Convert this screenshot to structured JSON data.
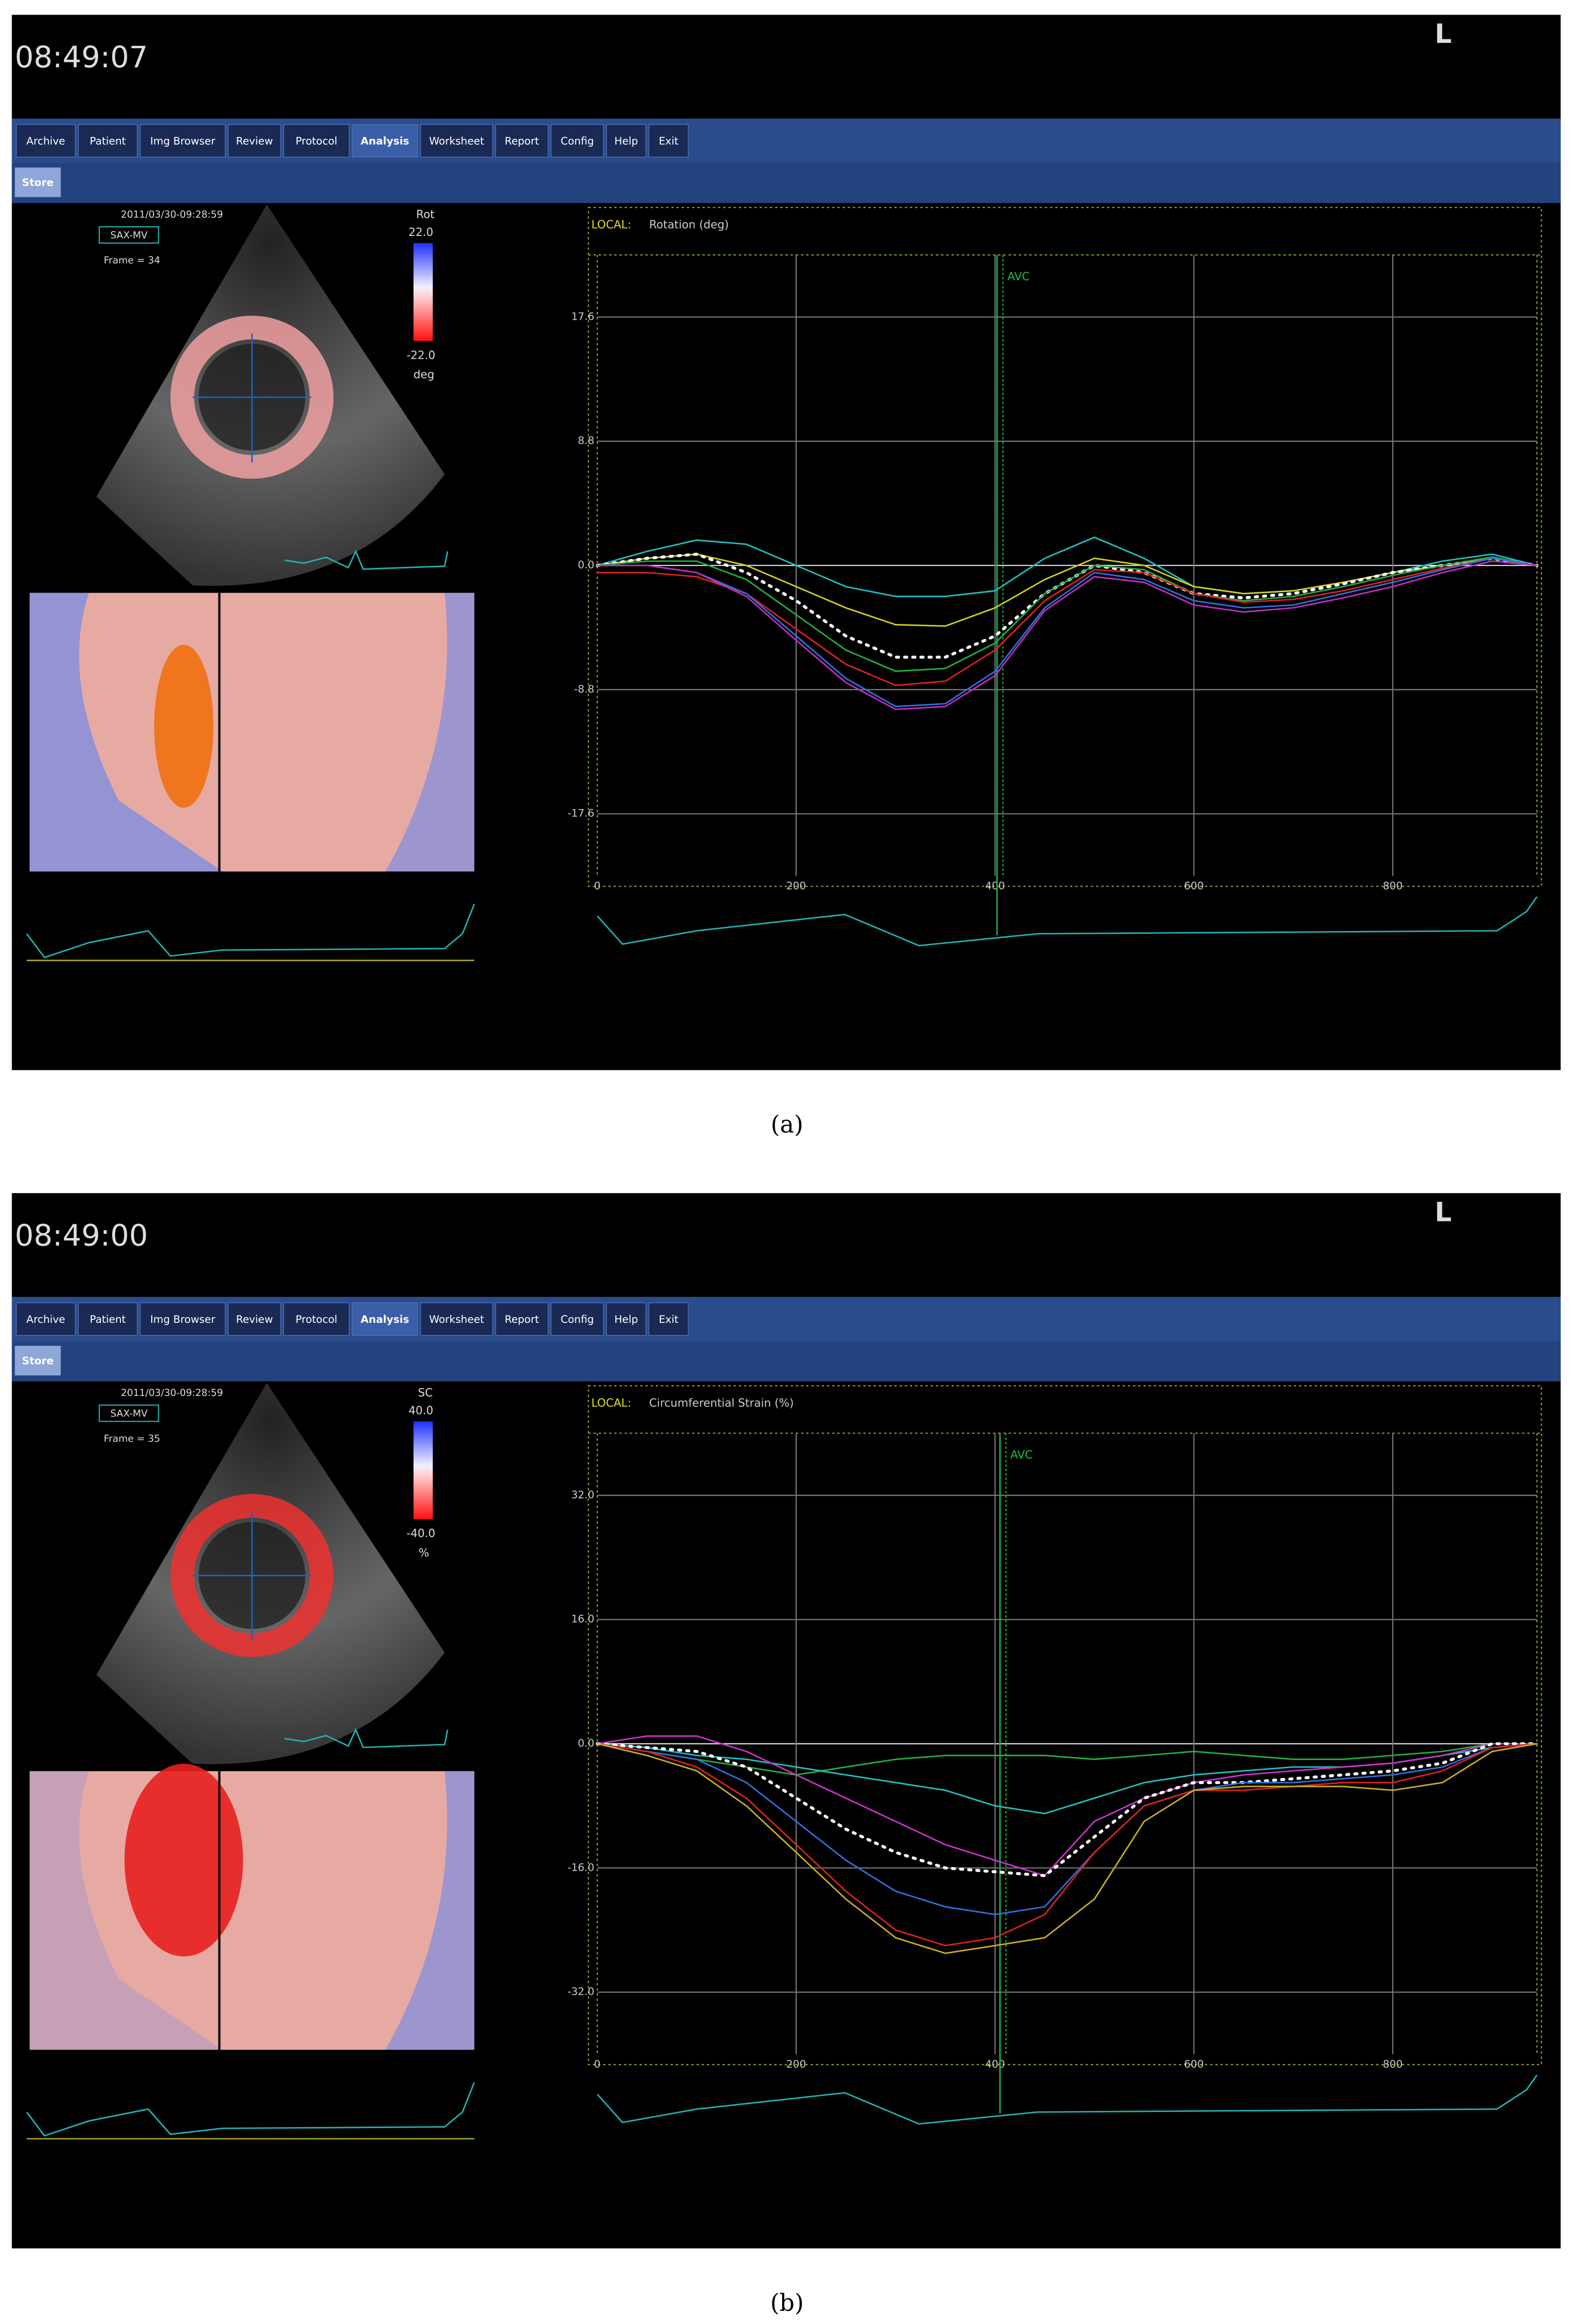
{
  "panels": [
    {
      "caption": "(a)",
      "time": "08:49:07",
      "corner": "L",
      "tabs": [
        "Archive",
        "Patient",
        "Img Browser",
        "Review",
        "Protocol",
        "Analysis",
        "Worksheet",
        "Report",
        "Config",
        "Help",
        "Exit"
      ],
      "active_tab": 5,
      "store": "Store",
      "date": "2011/03/30-09:28:59",
      "view": "SAX-MV",
      "frame": "Frame = 34",
      "colorbar": {
        "name": "Rot",
        "max": "22.0",
        "min": "-22.0",
        "unit": "deg",
        "ring_color": "#f0a0a0",
        "blob_color": "#f07010"
      },
      "chart": {
        "local": "LOCAL:",
        "title": "Rotation (deg)",
        "marker": "AVC",
        "marker_x": 402,
        "xlim": [
          0,
          945
        ],
        "ylim": [
          -22,
          22
        ],
        "xticks": [
          0,
          200,
          400,
          600,
          800
        ],
        "yticks": [
          17.6,
          8.8,
          {
            "value": 0,
            "label": "0.0"
          },
          -8.8,
          -17.6
        ],
        "x": [
          0,
          50,
          100,
          150,
          200,
          250,
          300,
          350,
          400,
          450,
          500,
          550,
          600,
          650,
          700,
          750,
          800,
          850,
          900,
          945
        ],
        "series": [
          {
            "color": "#20c0c0",
            "values": [
              0,
              1,
              1.8,
              1.5,
              0,
              -1.5,
              -2.2,
              -2.2,
              -1.8,
              0.5,
              2,
              0.5,
              -1.5,
              -2,
              -1.8,
              -1.2,
              -0.5,
              0.3,
              0.8,
              0
            ]
          },
          {
            "color": "#d0d020",
            "values": [
              0,
              0.5,
              0.8,
              0,
              -1.5,
              -3,
              -4.2,
              -4.3,
              -3,
              -1,
              0.5,
              0,
              -1.5,
              -2,
              -1.8,
              -1.2,
              -0.5,
              0,
              0.5,
              0
            ]
          },
          {
            "color": "#ffffff",
            "style": "dotted",
            "values": [
              0,
              0.5,
              0.8,
              -0.5,
              -2.5,
              -5,
              -6.5,
              -6.5,
              -5,
              -2,
              0,
              -0.5,
              -2,
              -2.3,
              -2,
              -1.3,
              -0.5,
              0,
              0.5,
              0
            ]
          },
          {
            "color": "#20b040",
            "values": [
              0,
              0.3,
              0.3,
              -1,
              -3.5,
              -6,
              -7.5,
              -7.3,
              -5.5,
              -2,
              0,
              -0.3,
              -2,
              -2.5,
              -2.2,
              -1.5,
              -0.7,
              0,
              0.6,
              0
            ]
          },
          {
            "color": "#e02020",
            "values": [
              -0.5,
              -0.5,
              -0.8,
              -2,
              -4.5,
              -7,
              -8.5,
              -8.2,
              -6,
              -2.5,
              -0.3,
              -0.5,
              -2,
              -2.6,
              -2.4,
              -1.8,
              -1,
              -0.2,
              0.5,
              0
            ]
          },
          {
            "color": "#3070e0",
            "values": [
              0,
              0,
              -0.5,
              -2,
              -5,
              -8,
              -10,
              -9.8,
              -7.5,
              -3,
              -0.5,
              -1,
              -2.5,
              -3,
              -2.8,
              -2,
              -1.2,
              -0.3,
              0.5,
              0
            ]
          },
          {
            "color": "#c030c0",
            "values": [
              0,
              0,
              -0.5,
              -2.2,
              -5.3,
              -8.3,
              -10.2,
              -10,
              -7.8,
              -3.2,
              -0.8,
              -1.2,
              -2.8,
              -3.3,
              -3,
              -2.3,
              -1.5,
              -0.5,
              0.3,
              0
            ]
          }
        ]
      }
    },
    {
      "caption": "(b)",
      "time": "08:49:00",
      "corner": "L",
      "tabs": [
        "Archive",
        "Patient",
        "Img Browser",
        "Review",
        "Protocol",
        "Analysis",
        "Worksheet",
        "Report",
        "Config",
        "Help",
        "Exit"
      ],
      "active_tab": 5,
      "store": "Store",
      "date": "2011/03/30-09:28:59",
      "view": "SAX-MV",
      "frame": "Frame = 35",
      "colorbar": {
        "name": "SC",
        "max": "40.0",
        "min": "-40.0",
        "unit": "%",
        "ring_color": "#f03030",
        "blob_color": "#e82020"
      },
      "chart": {
        "local": "LOCAL:",
        "title": "Circumferential Strain (%)",
        "marker": "AVC",
        "marker_x": 405,
        "xlim": [
          0,
          945
        ],
        "ylim": [
          -40,
          40
        ],
        "xticks": [
          0,
          200,
          400,
          600,
          800
        ],
        "yticks": [
          {
            "value": 32,
            "label": "32.0"
          },
          {
            "value": 16,
            "label": "16.0"
          },
          {
            "value": 0,
            "label": "0.0"
          },
          {
            "value": -16,
            "label": "-16.0"
          },
          {
            "value": -32,
            "label": "-32.0"
          }
        ],
        "x": [
          0,
          50,
          100,
          150,
          200,
          250,
          300,
          350,
          400,
          450,
          500,
          550,
          600,
          650,
          700,
          750,
          800,
          850,
          900,
          945
        ],
        "series": [
          {
            "color": "#20b040",
            "values": [
              0,
              -1,
              -2,
              -3,
              -4,
              -3,
              -2,
              -1.5,
              -1.5,
              -1.5,
              -2,
              -1.5,
              -1,
              -1.5,
              -2,
              -2,
              -1.5,
              -1,
              0,
              0
            ]
          },
          {
            "color": "#20c0c0",
            "values": [
              0,
              -0.5,
              -1.5,
              -2,
              -3,
              -4,
              -5,
              -6,
              -8,
              -9,
              -7,
              -5,
              -4,
              -3.5,
              -3,
              -3,
              -2.5,
              -1.5,
              -0.5,
              0
            ]
          },
          {
            "color": "#d030d0",
            "values": [
              0,
              1,
              1,
              -1,
              -4,
              -7,
              -10,
              -13,
              -15,
              -17,
              -10,
              -7,
              -5,
              -4,
              -3.5,
              -3,
              -2.5,
              -1.5,
              0,
              0
            ]
          },
          {
            "color": "#ffffff",
            "style": "dotted",
            "values": [
              0,
              -0.5,
              -1,
              -3,
              -7,
              -11,
              -14,
              -16,
              -16.5,
              -17,
              -12,
              -7,
              -5,
              -5,
              -4.5,
              -4,
              -3.5,
              -2.5,
              0,
              0
            ]
          },
          {
            "color": "#3070e0",
            "values": [
              0,
              -1,
              -2,
              -5,
              -10,
              -15,
              -19,
              -21,
              -22,
              -21,
              -14,
              -8,
              -6,
              -5,
              -5,
              -4.5,
              -4,
              -3,
              -0.5,
              0
            ]
          },
          {
            "color": "#e02020",
            "values": [
              0,
              -1,
              -3,
              -7,
              -13,
              -19,
              -24,
              -26,
              -25,
              -22,
              -14,
              -8,
              -6,
              -6,
              -5.5,
              -5,
              -5,
              -3.5,
              -0.5,
              0
            ]
          },
          {
            "color": "#c8b020",
            "values": [
              0,
              -1.5,
              -3.5,
              -8,
              -14,
              -20,
              -25,
              -27,
              -26,
              -25,
              -20,
              -10,
              -6,
              -5.5,
              -5.5,
              -5.5,
              -6,
              -5,
              -1,
              0
            ]
          }
        ]
      }
    }
  ]
}
